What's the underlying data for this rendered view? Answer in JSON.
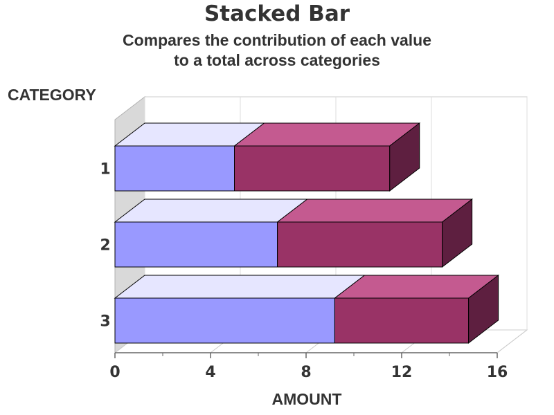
{
  "chart_data": {
    "type": "bar",
    "orientation": "horizontal",
    "stacked": true,
    "title": "Stacked Bar",
    "subtitle_lines": [
      "Compares the contribution of each value",
      "to a total across categories"
    ],
    "xlabel": "AMOUNT",
    "ylabel": "CATEGORY",
    "categories": [
      "1",
      "2",
      "3"
    ],
    "series": [
      {
        "values": [
          5,
          6.8,
          9.2
        ],
        "color": "#9999ff",
        "top_color": "#e6e6ff",
        "side_color": "#5a5ab0"
      },
      {
        "values": [
          6.5,
          6.9,
          5.6
        ],
        "color": "#993366",
        "top_color": "#c45a90",
        "side_color": "#5e1f40"
      }
    ],
    "xlim": [
      0,
      16
    ],
    "x_ticks": [
      "0",
      "4",
      "8",
      "12",
      "16"
    ],
    "grid": true,
    "legend": "none"
  }
}
